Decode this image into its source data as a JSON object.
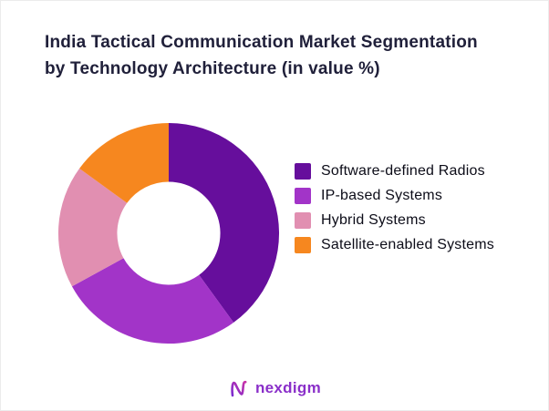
{
  "title": "India Tactical Communication Market Segmentation\nby Technology Architecture (in value %)",
  "chart_data": {
    "type": "pie",
    "subtype": "donut",
    "title": "India Tactical Communication Market Segmentation by Technology Architecture (in value %)",
    "unit": "value %",
    "categories": [
      "Software-defined Radios",
      "IP-based Systems",
      "Hybrid Systems",
      "Satellite-enabled Systems"
    ],
    "values": [
      40,
      27,
      18,
      15
    ],
    "colors": [
      "#660e9c",
      "#a234c8",
      "#e18fb1",
      "#f6871f"
    ],
    "legend_position": "right",
    "start_angle_deg": -90,
    "direction": "clockwise",
    "donut_hole_ratio": 0.47
  },
  "footer": {
    "logo_text": "nexdigm",
    "logo_color": "#8a2fc9"
  }
}
